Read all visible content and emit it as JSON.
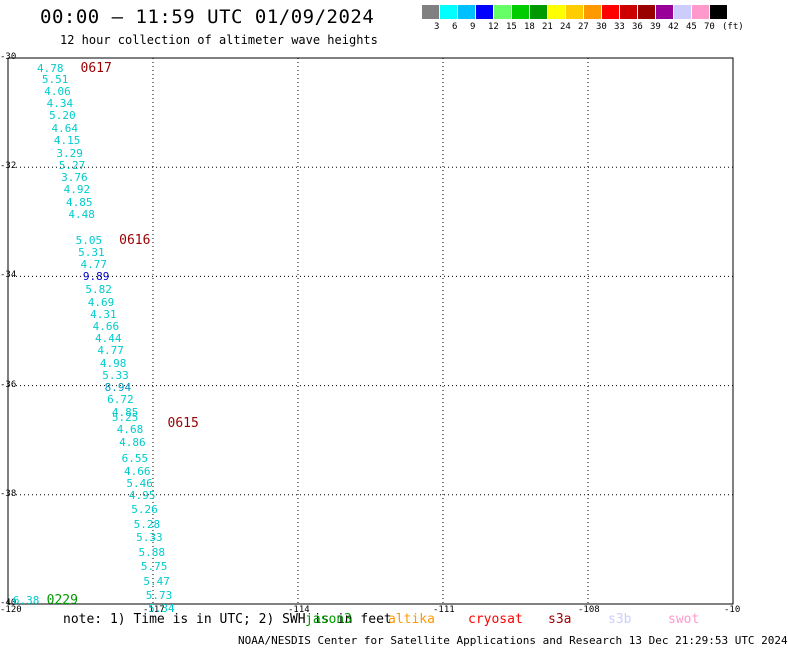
{
  "header": {
    "title": "00:00 – 11:59 UTC 01/09/2024",
    "subtitle": "12 hour collection of altimeter wave heights"
  },
  "legend": {
    "colors": [
      "#808080",
      "#00ffff",
      "#00bfff",
      "#0000ff",
      "#66ff66",
      "#00cc00",
      "#009900",
      "#ffff00",
      "#ffcc00",
      "#ff9900",
      "#ff0000",
      "#cc0000",
      "#990000",
      "#990099",
      "#ccccff",
      "#ff99cc",
      "#000000"
    ],
    "labels": [
      "3",
      "6",
      "9",
      "12",
      "15",
      "18",
      "21",
      "24",
      "27",
      "30",
      "33",
      "36",
      "39",
      "42",
      "45",
      "70",
      "(ft)"
    ]
  },
  "axes": {
    "x_labels": [
      "-120",
      "-117",
      "-114",
      "-111",
      "-108",
      "-10"
    ],
    "y_labels": [
      "-30",
      "-32",
      "-34",
      "-36",
      "-38",
      "-40"
    ]
  },
  "chart_data": {
    "type": "scatter",
    "xlim": [
      -120,
      -105
    ],
    "ylim": [
      -40,
      -30
    ],
    "units": "ft",
    "points": [
      {
        "lon": -119.4,
        "lat": -30.2,
        "value": "4.78",
        "color": "#00cccc"
      },
      {
        "lon": -119.3,
        "lat": -30.4,
        "value": "5.51",
        "color": "#00cccc"
      },
      {
        "lon": -119.25,
        "lat": -30.63,
        "value": "4.06",
        "color": "#00cccc"
      },
      {
        "lon": -119.2,
        "lat": -30.85,
        "value": "4.34",
        "color": "#00cccc"
      },
      {
        "lon": -119.15,
        "lat": -31.07,
        "value": "5.20",
        "color": "#00cccc"
      },
      {
        "lon": -119.1,
        "lat": -31.3,
        "value": "4.64",
        "color": "#00cccc"
      },
      {
        "lon": -119.05,
        "lat": -31.52,
        "value": "4.15",
        "color": "#00cccc"
      },
      {
        "lon": -119.0,
        "lat": -31.75,
        "value": "3.29",
        "color": "#00cccc"
      },
      {
        "lon": -118.95,
        "lat": -31.97,
        "value": "5.27",
        "color": "#00cccc"
      },
      {
        "lon": -118.9,
        "lat": -32.2,
        "value": "3.76",
        "color": "#00cccc"
      },
      {
        "lon": -118.85,
        "lat": -32.42,
        "value": "4.92",
        "color": "#00cccc"
      },
      {
        "lon": -118.8,
        "lat": -32.65,
        "value": "4.85",
        "color": "#00cccc"
      },
      {
        "lon": -118.75,
        "lat": -32.87,
        "value": "4.48",
        "color": "#00cccc"
      },
      {
        "lon": -118.6,
        "lat": -33.35,
        "value": "5.05",
        "color": "#00cccc"
      },
      {
        "lon": -118.55,
        "lat": -33.57,
        "value": "5.31",
        "color": "#00cccc"
      },
      {
        "lon": -118.5,
        "lat": -33.8,
        "value": "4.77",
        "color": "#00cccc"
      },
      {
        "lon": -118.45,
        "lat": -34.02,
        "value": "9.89",
        "color": "#0000cc"
      },
      {
        "lon": -118.4,
        "lat": -34.25,
        "value": "5.82",
        "color": "#00cccc"
      },
      {
        "lon": -118.35,
        "lat": -34.48,
        "value": "4.69",
        "color": "#00cccc"
      },
      {
        "lon": -118.3,
        "lat": -34.7,
        "value": "4.31",
        "color": "#00cccc"
      },
      {
        "lon": -118.25,
        "lat": -34.92,
        "value": "4.66",
        "color": "#00cccc"
      },
      {
        "lon": -118.2,
        "lat": -35.15,
        "value": "4.44",
        "color": "#00cccc"
      },
      {
        "lon": -118.15,
        "lat": -35.37,
        "value": "4.77",
        "color": "#00cccc"
      },
      {
        "lon": -118.1,
        "lat": -35.6,
        "value": "4.98",
        "color": "#00cccc"
      },
      {
        "lon": -118.05,
        "lat": -35.82,
        "value": "5.33",
        "color": "#00cccc"
      },
      {
        "lon": -118.0,
        "lat": -36.05,
        "value": "8.94",
        "color": "#0099cc"
      },
      {
        "lon": -117.95,
        "lat": -36.27,
        "value": "6.72",
        "color": "#00cccc"
      },
      {
        "lon": -117.85,
        "lat": -36.5,
        "value": "4.85",
        "color": "#00cccc"
      },
      {
        "lon": -117.85,
        "lat": -36.6,
        "value": "5.25",
        "color": "#00cccc"
      },
      {
        "lon": -117.75,
        "lat": -36.82,
        "value": "4.68",
        "color": "#00cccc"
      },
      {
        "lon": -117.7,
        "lat": -37.05,
        "value": "4.86",
        "color": "#00cccc"
      },
      {
        "lon": -117.65,
        "lat": -37.35,
        "value": "6.55",
        "color": "#00cccc"
      },
      {
        "lon": -117.6,
        "lat": -37.58,
        "value": "4.66",
        "color": "#00cccc"
      },
      {
        "lon": -117.55,
        "lat": -37.8,
        "value": "5.46",
        "color": "#00cccc"
      },
      {
        "lon": -117.5,
        "lat": -38.02,
        "value": "4.95",
        "color": "#00cccc"
      },
      {
        "lon": -117.45,
        "lat": -38.28,
        "value": "5.26",
        "color": "#00cccc"
      },
      {
        "lon": -117.4,
        "lat": -38.55,
        "value": "5.28",
        "color": "#00cccc"
      },
      {
        "lon": -117.35,
        "lat": -38.8,
        "value": "5.33",
        "color": "#00cccc"
      },
      {
        "lon": -117.3,
        "lat": -39.07,
        "value": "5.88",
        "color": "#00cccc"
      },
      {
        "lon": -117.25,
        "lat": -39.33,
        "value": "5.75",
        "color": "#00cccc"
      },
      {
        "lon": -117.2,
        "lat": -39.6,
        "value": "5.47",
        "color": "#00cccc"
      },
      {
        "lon": -117.15,
        "lat": -39.85,
        "value": "5.73",
        "color": "#00cccc"
      },
      {
        "lon": -117.1,
        "lat": -40.1,
        "value": "5.34",
        "color": "#00cccc"
      },
      {
        "lon": -119.9,
        "lat": -39.95,
        "value": "6.38",
        "color": "#00cccc"
      }
    ],
    "pass_labels": [
      {
        "lon": -118.5,
        "lat": -30.2,
        "text": "0617",
        "color": "#990000"
      },
      {
        "lon": -117.7,
        "lat": -33.35,
        "text": "0616",
        "color": "#990000"
      },
      {
        "lon": -116.7,
        "lat": -36.7,
        "text": "0615",
        "color": "#990000"
      },
      {
        "lon": -119.2,
        "lat": -39.95,
        "text": "0229",
        "color": "#009900"
      }
    ]
  },
  "bottom": {
    "note": "note: 1) Time is in UTC; 2) SWH is in feet",
    "satellites": [
      {
        "name": "jason3",
        "color": "#009900"
      },
      {
        "name": "altika",
        "color": "#ff9900"
      },
      {
        "name": "cryosat",
        "color": "#ff0000"
      },
      {
        "name": "s3a",
        "color": "#990000"
      },
      {
        "name": "s3b",
        "color": "#ccccff"
      },
      {
        "name": "swot",
        "color": "#ff99cc"
      }
    ],
    "footer": "NOAA/NESDIS Center for Satellite Applications and Research    13 Dec 21:29:53 UTC 2024"
  }
}
